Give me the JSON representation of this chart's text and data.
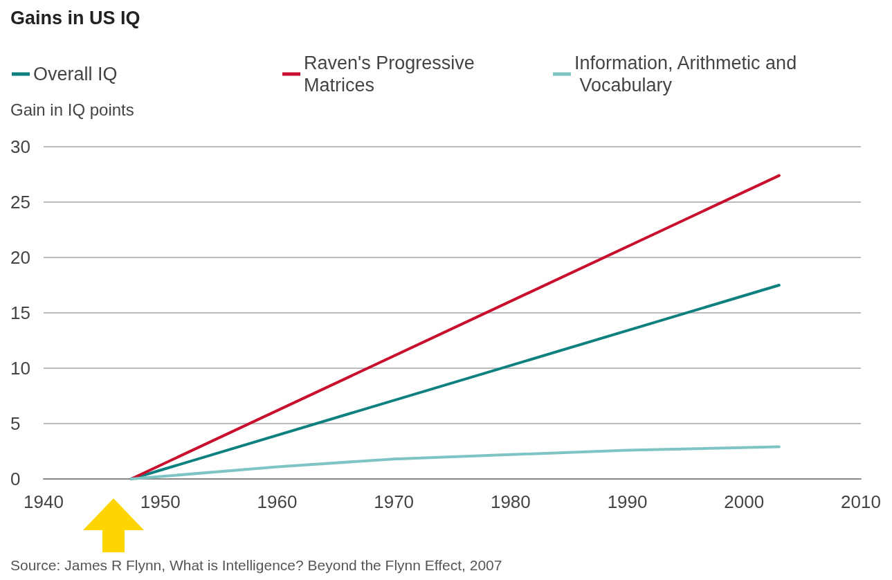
{
  "chart_data": {
    "type": "line",
    "title": "Gains in US IQ",
    "ylabel": "Gain in IQ points",
    "annotations": [
      "Source: James R Flynn, What is Intelligence? Beyond the Flynn Effect, 2007"
    ],
    "series": [
      {
        "name": "Overall IQ",
        "color": "#0f8080",
        "x": [
          1947.5,
          2003
        ],
        "values": [
          0,
          17.5
        ]
      },
      {
        "name": "Raven's Progressive Matrices",
        "color": "#c8102e",
        "x": [
          1947.5,
          2003
        ],
        "values": [
          0,
          27.4
        ]
      },
      {
        "name": "Information, Arithmetic and Vocabulary",
        "color": "#7fc4c4",
        "x": [
          1947.5,
          1960,
          1970,
          1980,
          1990,
          2003
        ],
        "values": [
          0,
          1.1,
          1.8,
          2.2,
          2.6,
          2.9
        ]
      }
    ],
    "xlim": [
      1940,
      2010
    ],
    "xticks": [
      1940,
      1950,
      1960,
      1970,
      1980,
      1990,
      2000,
      2010
    ],
    "ylim": [
      0,
      30
    ],
    "yticks": [
      0,
      5,
      10,
      15,
      20,
      25,
      30
    ],
    "grid": "y",
    "legend": "top left",
    "marker": "none",
    "line_style": "solid"
  }
}
